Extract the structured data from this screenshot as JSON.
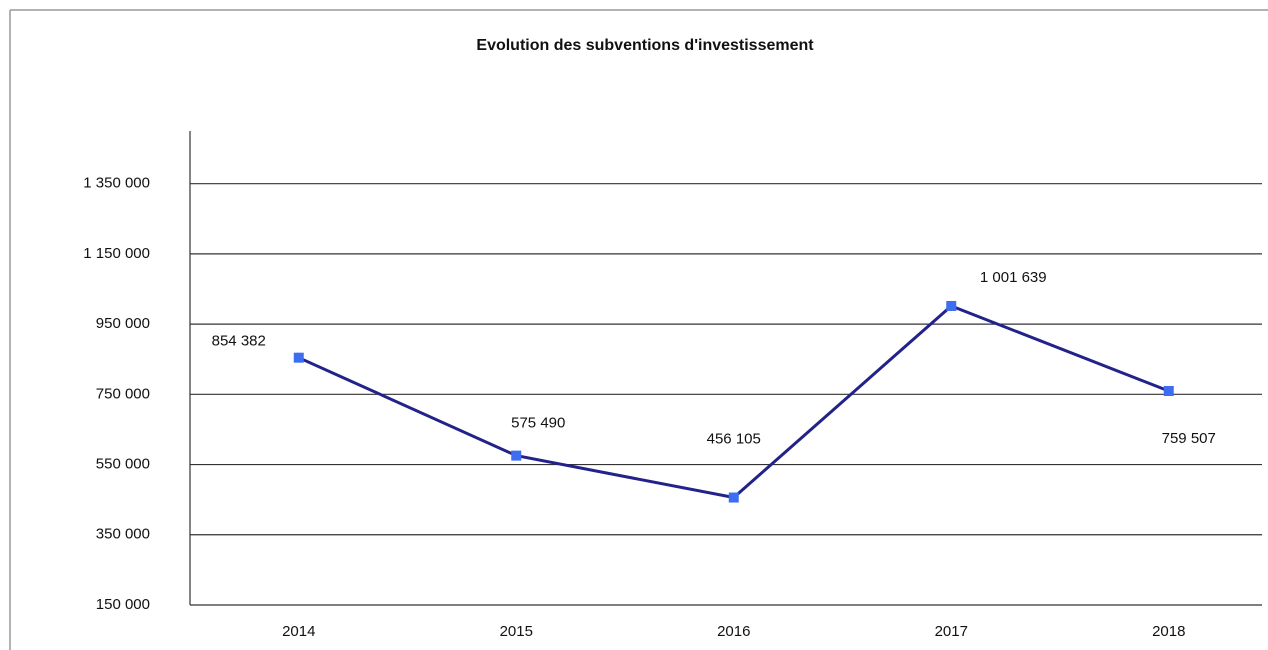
{
  "chart_data": {
    "type": "line",
    "title": "Evolution des subventions d'investissement",
    "categories": [
      "2014",
      "2015",
      "2016",
      "2017",
      "2018"
    ],
    "series": [
      {
        "color": "#22228a",
        "marker_color": "#3d6ef2",
        "values": [
          854382,
          575490,
          456105,
          1001639,
          759507
        ],
        "value_labels": [
          "854 382",
          "575 490",
          "456 105",
          "1 001 639",
          "759 507"
        ]
      }
    ],
    "ylim": [
      150000,
      1500000
    ],
    "yticks": [
      {
        "value": 150000,
        "label": "150 000"
      },
      {
        "value": 350000,
        "label": "350 000"
      },
      {
        "value": 550000,
        "label": "550 000"
      },
      {
        "value": 750000,
        "label": "750 000"
      },
      {
        "value": 950000,
        "label": "950 000"
      },
      {
        "value": 1150000,
        "label": "1 150 000"
      },
      {
        "value": 1350000,
        "label": "1 350 000"
      }
    ],
    "grid": true
  }
}
